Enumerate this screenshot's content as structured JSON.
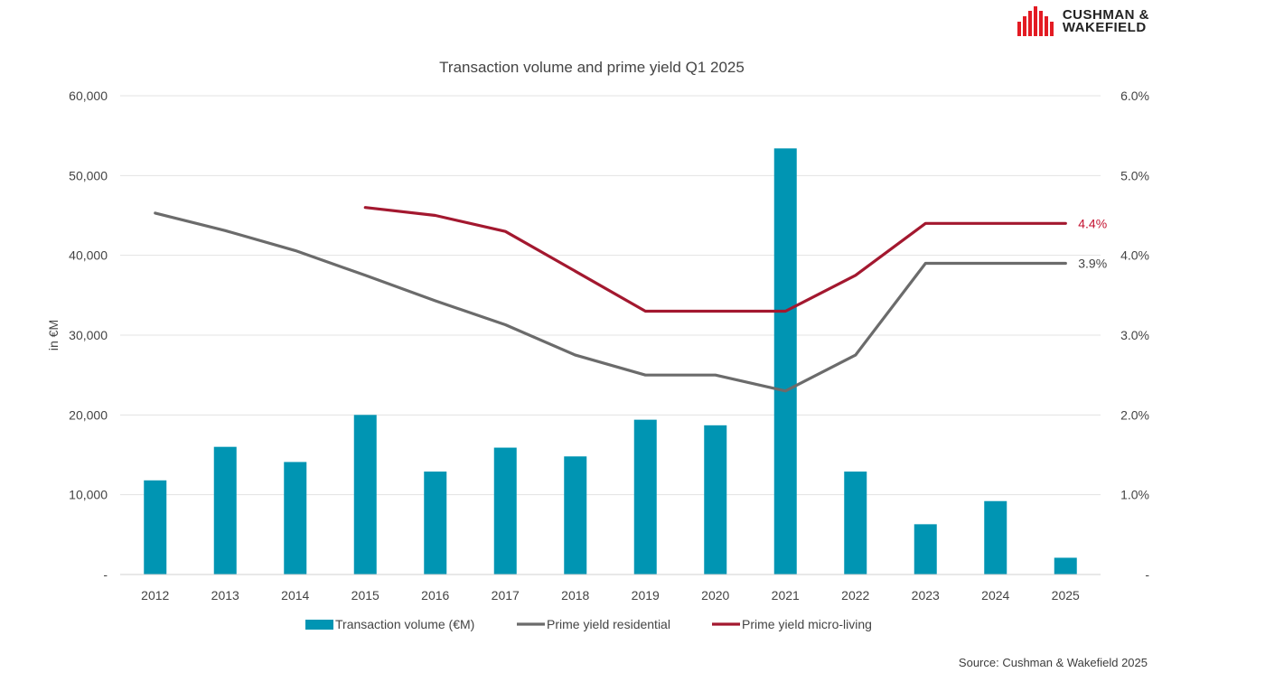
{
  "brand": {
    "logo_line1": "CUSHMAN &",
    "logo_line2": "WAKEFIELD",
    "logo_color": "#e31b23"
  },
  "source": "Source: Cushman & Wakefield 2025",
  "chart_data": {
    "type": "bar",
    "title": "Transaction volume and prime yield Q1 2025",
    "ylabel": "in €M",
    "categories": [
      "2012",
      "2013",
      "2014",
      "2015",
      "2016",
      "2017",
      "2018",
      "2019",
      "2020",
      "2021",
      "2022",
      "2023",
      "2024",
      "2025"
    ],
    "ylim": [
      0,
      60000
    ],
    "y_ticks": [
      "-",
      "10,000",
      "20,000",
      "30,000",
      "40,000",
      "50,000",
      "60,000"
    ],
    "y2lim": [
      0,
      6.0
    ],
    "y2_ticks": [
      "-",
      "1.0%",
      "2.0%",
      "3.0%",
      "4.0%",
      "5.0%",
      "6.0%"
    ],
    "grid": true,
    "legend_position": "bottom",
    "series": [
      {
        "name": "Transaction volume (€M)",
        "type": "bar",
        "axis": "left",
        "color": "#0095b3",
        "values": [
          11800,
          16000,
          14100,
          20000,
          12900,
          15900,
          14800,
          19400,
          18700,
          53400,
          12900,
          6300,
          9200,
          2100
        ]
      },
      {
        "name": "Prime yield residential",
        "type": "line",
        "axis": "right",
        "color": "#6b6b6b",
        "values": [
          4.53,
          4.31,
          4.06,
          3.75,
          3.43,
          3.13,
          2.75,
          2.5,
          2.5,
          2.3,
          2.75,
          3.9,
          3.9,
          3.9
        ],
        "end_label": "3.9%"
      },
      {
        "name": "Prime yield micro-living",
        "type": "line",
        "axis": "right",
        "color": "#a3182f",
        "values": [
          null,
          null,
          null,
          4.6,
          4.5,
          4.3,
          3.8,
          3.3,
          3.3,
          3.3,
          3.75,
          4.4,
          4.4,
          4.4
        ],
        "end_label": "4.4%",
        "end_label_color": "#c41230"
      }
    ]
  }
}
